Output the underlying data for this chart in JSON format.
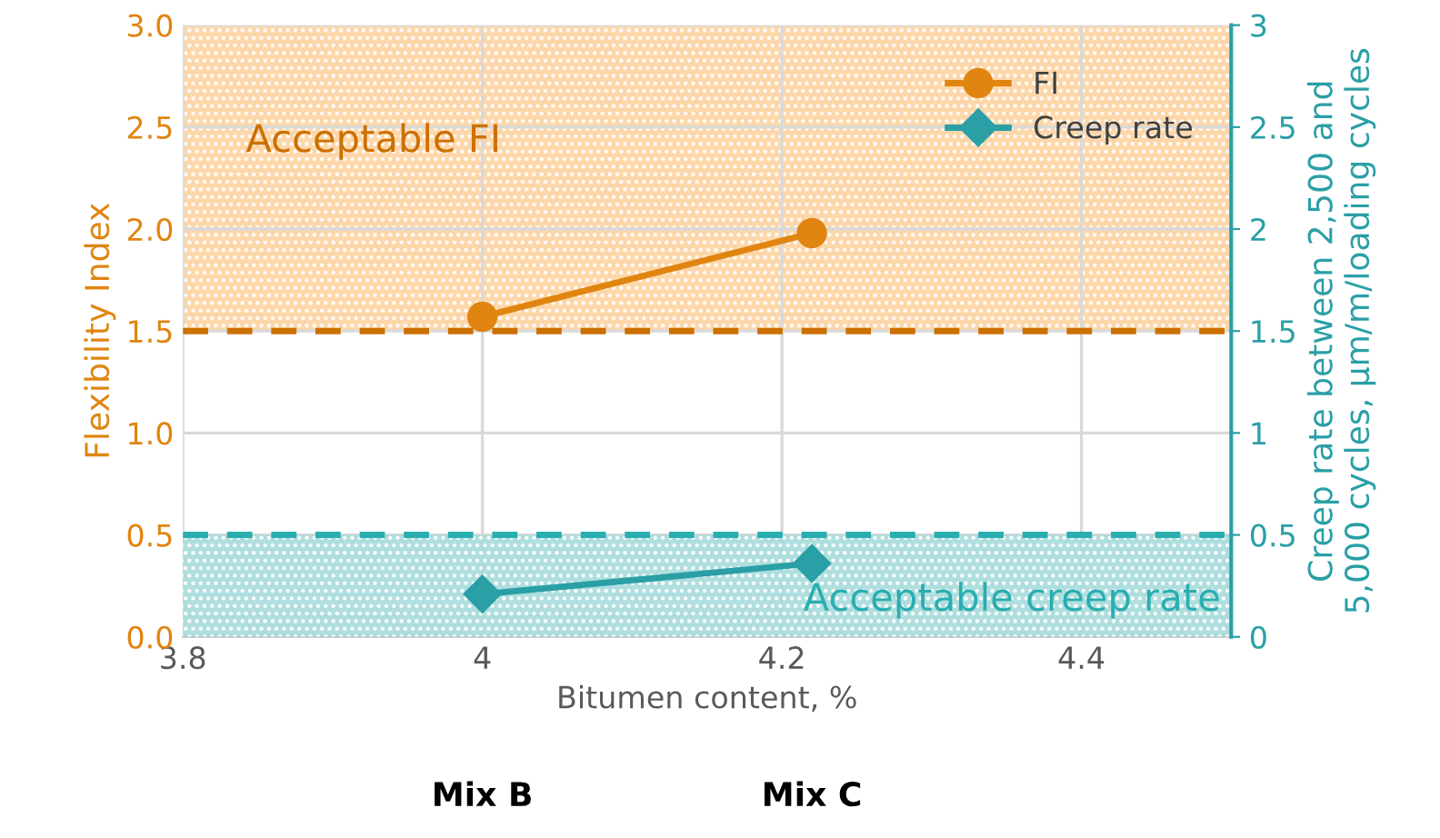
{
  "chart_data": {
    "type": "line",
    "xlabel": "Bitumen content, %",
    "ylabel": "Flexibility Index",
    "y2label": "Creep rate between 2,500 and\n5,000 cycles, µm/m/loading cycles",
    "x": [
      4.0,
      4.22
    ],
    "series": [
      {
        "name": "FI",
        "color": "#e08510",
        "values": [
          1.57,
          1.98
        ],
        "marker": "circle"
      },
      {
        "name": "Creep rate",
        "color": "#2a9fa6",
        "values": [
          0.21,
          0.36
        ],
        "axis": "y2",
        "marker": "diamond"
      }
    ],
    "xlim": [
      3.8,
      4.5
    ],
    "xticks": [
      3.8,
      {
        "value": 4.0,
        "label": "4"
      },
      4.2,
      4.4
    ],
    "ylim": [
      0,
      3
    ],
    "yticks": [
      {
        "value": 0,
        "label": "0.0"
      },
      {
        "value": 0.5,
        "label": "0.5"
      },
      {
        "value": 1,
        "label": "1.0"
      },
      {
        "value": 1.5,
        "label": "1.5"
      },
      {
        "value": 2,
        "label": "2.0"
      },
      {
        "value": 2.5,
        "label": "2.5"
      },
      {
        "value": 3,
        "label": "3.0"
      }
    ],
    "y2lim": [
      0,
      3
    ],
    "y2ticks": [
      0,
      0.5,
      1,
      1.5,
      2,
      2.5,
      3
    ],
    "ref_lines": [
      {
        "axis": "y",
        "value": 1.5,
        "color": "#cc7000",
        "line_style": "dashed"
      },
      {
        "axis": "y2",
        "value": 0.5,
        "color": "#2aaeb0",
        "line_style": "dashed"
      }
    ],
    "bands": [
      {
        "axis": "y",
        "from": 1.5,
        "to": 3,
        "label": "Acceptable FI",
        "color": "#fdd3a0"
      },
      {
        "axis": "y2",
        "from": 0,
        "to": 0.5,
        "label": "Acceptable creep rate",
        "color": "#a6dada"
      }
    ],
    "annotations": [
      "Mix B",
      "Mix C"
    ],
    "grid": true,
    "legend": "top right"
  }
}
